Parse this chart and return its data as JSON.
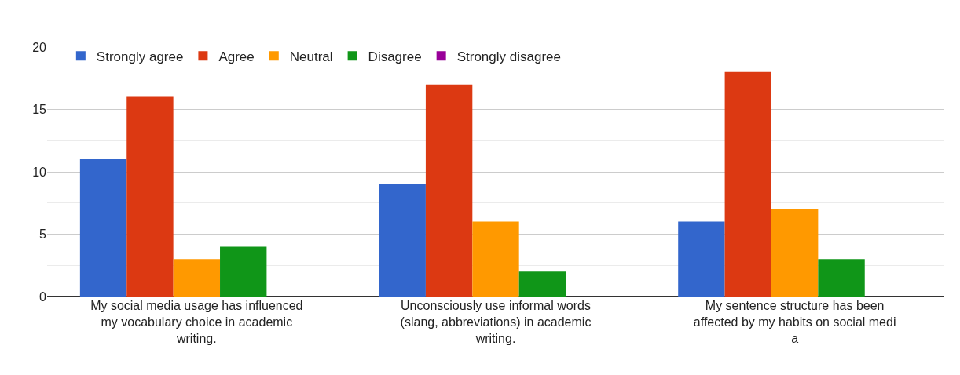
{
  "chart_data": {
    "type": "bar",
    "categories": [
      "My social media usage has influenced my vocabulary choice in academic writing.",
      "Unconsciously use informal words (slang, abbreviations) in academic writing.",
      "My sentence structure has been affected by my habits on social medi a"
    ],
    "series": [
      {
        "name": "Strongly agree",
        "color": "#3366cc",
        "values": [
          11,
          9,
          6
        ]
      },
      {
        "name": "Agree",
        "color": "#dc3912",
        "values": [
          16,
          17,
          18
        ]
      },
      {
        "name": "Neutral",
        "color": "#ff9900",
        "values": [
          3,
          6,
          7
        ]
      },
      {
        "name": "Disagree",
        "color": "#109618",
        "values": [
          4,
          2,
          3
        ]
      },
      {
        "name": "Strongly disagree",
        "color": "#990099",
        "values": [
          0,
          0,
          0
        ]
      }
    ],
    "ylim": [
      0,
      20
    ],
    "yticks": [
      0,
      5,
      10,
      15,
      20
    ],
    "grid": "y",
    "legend": "top left"
  }
}
